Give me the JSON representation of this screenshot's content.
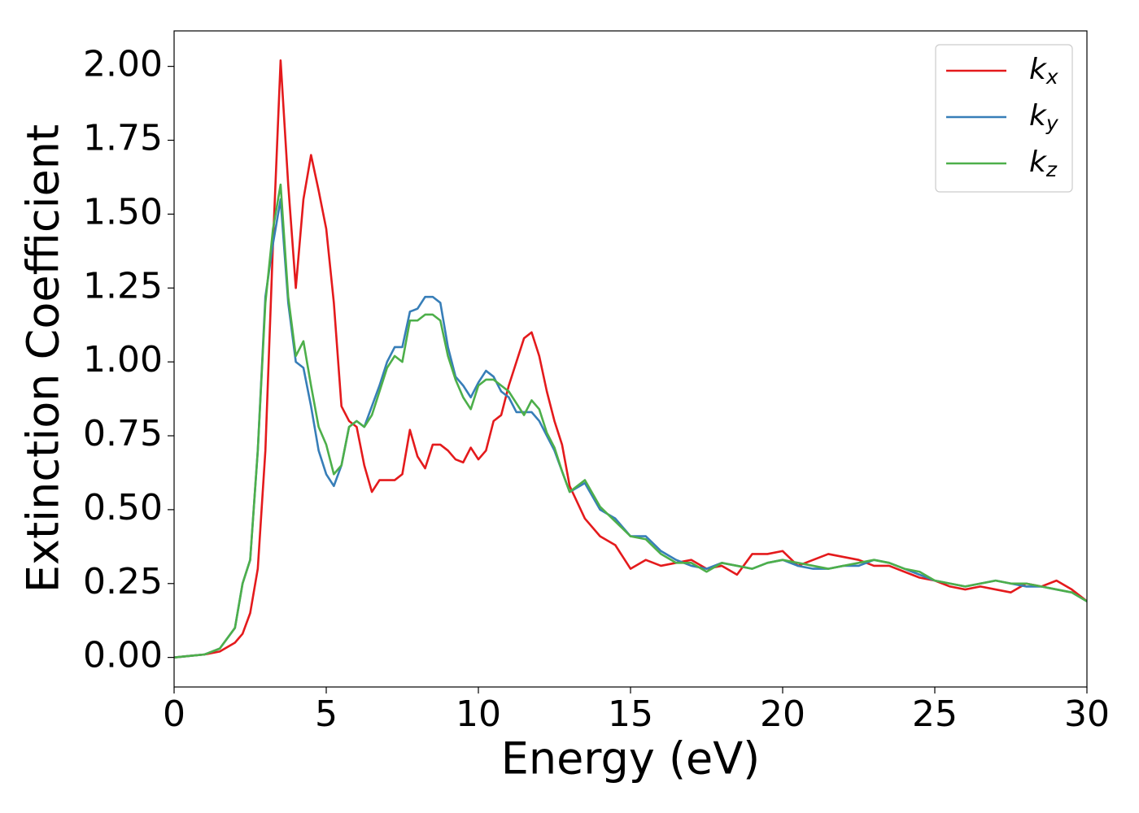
{
  "chart_data": {
    "type": "line",
    "xlabel": "Energy (eV)",
    "ylabel": "Extinction Coefficient",
    "xlim": [
      0,
      30
    ],
    "ylim": [
      -0.1,
      2.12
    ],
    "xticks": [
      0,
      5,
      10,
      15,
      20,
      25,
      30
    ],
    "yticks": [
      {
        "value": 0,
        "label": "0.00"
      },
      {
        "value": 0.25,
        "label": "0.25"
      },
      {
        "value": 0.5,
        "label": "0.50"
      },
      {
        "value": 0.75,
        "label": "0.75"
      },
      {
        "value": 1,
        "label": "1.00"
      },
      {
        "value": 1.25,
        "label": "1.25"
      },
      {
        "value": 1.5,
        "label": "1.50"
      },
      {
        "value": 1.75,
        "label": "1.75"
      },
      {
        "value": 2,
        "label": "2.00"
      }
    ],
    "grid": false,
    "legend": "upper right",
    "x": [
      0,
      0.5,
      1,
      1.5,
      2,
      2.25,
      2.5,
      2.75,
      3,
      3.25,
      3.5,
      3.75,
      4,
      4.25,
      4.5,
      4.75,
      5,
      5.25,
      5.5,
      5.75,
      6,
      6.25,
      6.5,
      6.75,
      7,
      7.25,
      7.5,
      7.75,
      8,
      8.25,
      8.5,
      8.75,
      9,
      9.25,
      9.5,
      9.75,
      10,
      10.25,
      10.5,
      10.75,
      11,
      11.25,
      11.5,
      11.75,
      12,
      12.25,
      12.5,
      12.75,
      13,
      13.5,
      14,
      14.5,
      15,
      15.5,
      16,
      16.5,
      17,
      17.5,
      18,
      18.5,
      19,
      19.5,
      20,
      20.5,
      21,
      21.5,
      22,
      22.5,
      23,
      23.5,
      24,
      24.5,
      25,
      25.5,
      26,
      26.5,
      27,
      27.5,
      28,
      28.5,
      29,
      29.5,
      30
    ],
    "series": [
      {
        "name": "kx",
        "color": "#e41a1c",
        "values": [
          0,
          0.005,
          0.01,
          0.02,
          0.05,
          0.08,
          0.15,
          0.3,
          0.7,
          1.4,
          2.02,
          1.6,
          1.25,
          1.55,
          1.7,
          1.58,
          1.45,
          1.2,
          0.85,
          0.8,
          0.78,
          0.65,
          0.56,
          0.6,
          0.6,
          0.6,
          0.62,
          0.77,
          0.68,
          0.64,
          0.72,
          0.72,
          0.7,
          0.67,
          0.66,
          0.71,
          0.67,
          0.7,
          0.8,
          0.82,
          0.92,
          1.0,
          1.08,
          1.1,
          1.02,
          0.9,
          0.8,
          0.72,
          0.58,
          0.47,
          0.41,
          0.38,
          0.3,
          0.33,
          0.31,
          0.32,
          0.33,
          0.3,
          0.31,
          0.28,
          0.35,
          0.35,
          0.36,
          0.31,
          0.33,
          0.35,
          0.34,
          0.33,
          0.31,
          0.31,
          0.29,
          0.27,
          0.26,
          0.24,
          0.23,
          0.24,
          0.23,
          0.22,
          0.25,
          0.24,
          0.26,
          0.23,
          0.19
        ]
      },
      {
        "name": "ky",
        "color": "#377eb8",
        "values": [
          0,
          0.005,
          0.01,
          0.03,
          0.1,
          0.25,
          0.33,
          0.7,
          1.22,
          1.4,
          1.55,
          1.2,
          1.0,
          0.98,
          0.85,
          0.7,
          0.62,
          0.58,
          0.65,
          0.78,
          0.8,
          0.78,
          0.85,
          0.92,
          1.0,
          1.05,
          1.05,
          1.17,
          1.18,
          1.22,
          1.22,
          1.2,
          1.05,
          0.95,
          0.92,
          0.88,
          0.93,
          0.97,
          0.95,
          0.9,
          0.88,
          0.83,
          0.83,
          0.83,
          0.8,
          0.75,
          0.7,
          0.63,
          0.56,
          0.59,
          0.5,
          0.47,
          0.41,
          0.41,
          0.36,
          0.33,
          0.31,
          0.3,
          0.32,
          0.31,
          0.3,
          0.32,
          0.33,
          0.31,
          0.3,
          0.3,
          0.31,
          0.31,
          0.33,
          0.32,
          0.3,
          0.28,
          0.26,
          0.25,
          0.24,
          0.25,
          0.26,
          0.25,
          0.24,
          0.24,
          0.23,
          0.22,
          0.19
        ]
      },
      {
        "name": "kz",
        "color": "#4daf4a",
        "values": [
          0,
          0.005,
          0.01,
          0.03,
          0.1,
          0.25,
          0.33,
          0.7,
          1.2,
          1.45,
          1.6,
          1.22,
          1.02,
          1.07,
          0.92,
          0.78,
          0.72,
          0.62,
          0.65,
          0.78,
          0.8,
          0.78,
          0.82,
          0.9,
          0.98,
          1.02,
          1.0,
          1.14,
          1.14,
          1.16,
          1.16,
          1.14,
          1.02,
          0.94,
          0.88,
          0.84,
          0.92,
          0.94,
          0.94,
          0.92,
          0.9,
          0.86,
          0.82,
          0.87,
          0.84,
          0.76,
          0.71,
          0.63,
          0.56,
          0.6,
          0.51,
          0.46,
          0.41,
          0.4,
          0.35,
          0.32,
          0.32,
          0.29,
          0.32,
          0.31,
          0.3,
          0.32,
          0.33,
          0.32,
          0.31,
          0.3,
          0.31,
          0.32,
          0.33,
          0.32,
          0.3,
          0.29,
          0.26,
          0.25,
          0.24,
          0.25,
          0.26,
          0.25,
          0.25,
          0.24,
          0.23,
          0.22,
          0.19
        ]
      }
    ]
  }
}
